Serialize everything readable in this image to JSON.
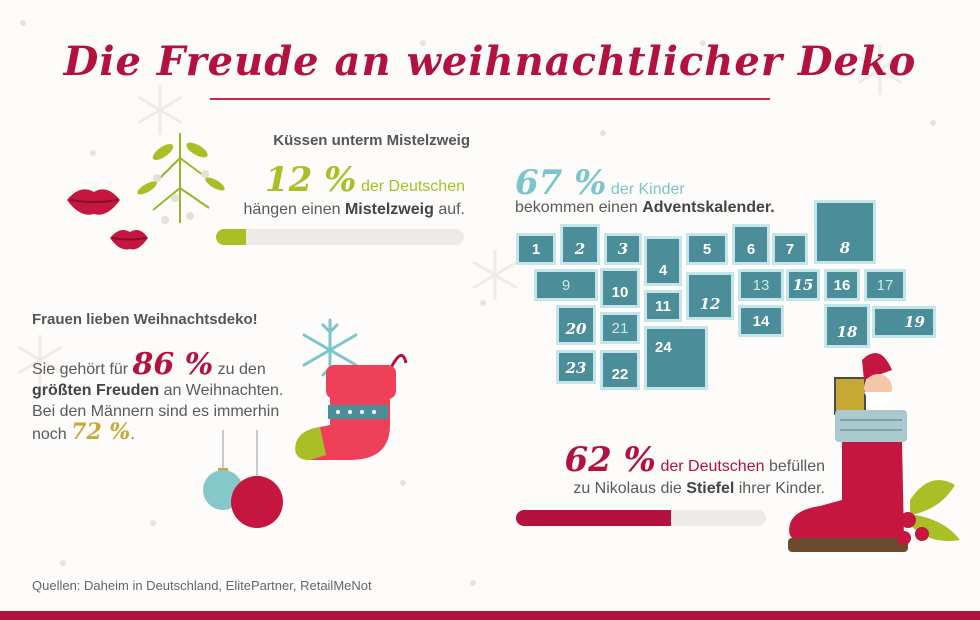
{
  "title": "Die Freude an weihnachtlicher Deko",
  "mistletoe": {
    "heading": "Küssen unterm Mistelzweig",
    "percent": "12 %",
    "line1_rest": "der Deutschen",
    "line2_pre": "hängen einen",
    "line2_bold": "Mistelzweig",
    "line2_post": "auf.",
    "bar_fraction": 0.12,
    "bar_color": "#a8c026"
  },
  "advent": {
    "percent": "67 %",
    "line1_rest": "der Kinder",
    "line2_pre": "bekommen einen",
    "line2_bold": "Adventskalender.",
    "doors": [
      "1",
      "2",
      "3",
      "4",
      "5",
      "6",
      "7",
      "8",
      "9",
      "10",
      "11",
      "12",
      "13",
      "14",
      "15",
      "16",
      "17",
      "18",
      "19",
      "20",
      "21",
      "22",
      "23",
      "24"
    ],
    "accent": "#4b8d98"
  },
  "women": {
    "heading": "Frauen lieben Weihnachtsdeko!",
    "line1_pre": "Sie gehört für",
    "percent": "86 %",
    "line1_post": "zu den",
    "line2_bold": "größten Freuden",
    "line2_post": "an Weihnachten.",
    "line3": "Bei den Männern sind es immerhin",
    "line4_pre": "noch",
    "percent_men": "72 %",
    "line4_post": "."
  },
  "nikolaus": {
    "percent": "62 %",
    "line1_mid": "der Deutschen",
    "line1_post": "befüllen",
    "line2_pre": "zu Nikolaus die",
    "line2_bold": "Stiefel",
    "line2_post": "ihrer Kinder.",
    "bar_fraction": 0.62,
    "bar_color": "#b3123f"
  },
  "sources": "Quellen: Daheim in Deutschland, ElitePartner, RetailMeNot",
  "colors": {
    "red": "#b3123f",
    "green": "#a8c026",
    "teal": "#7cc5cc",
    "gold": "#c7a834"
  }
}
